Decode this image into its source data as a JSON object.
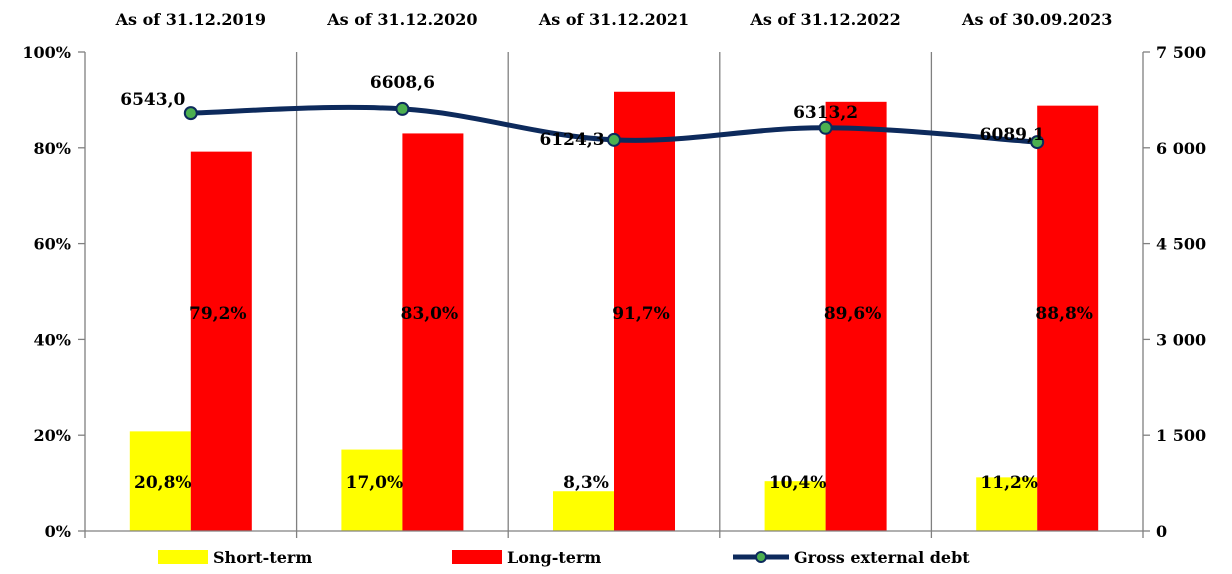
{
  "chart_data": {
    "type": "bar",
    "categories": [
      "As of 31.12.2019",
      "As of 31.12.2020",
      "As of 31.12.2021",
      "As of 31.12.2022",
      "As of 30.09.2023"
    ],
    "series": [
      {
        "name": "Short-term",
        "kind": "bar",
        "axis": "left",
        "color": "#FFFF00",
        "values": [
          20.8,
          17.0,
          8.3,
          10.4,
          11.2
        ],
        "labels": [
          "20,8%",
          "17,0%",
          "8,3%",
          "10,4%",
          "11,2%"
        ]
      },
      {
        "name": "Long-term",
        "kind": "bar",
        "axis": "left",
        "color": "#FF0000",
        "values": [
          79.2,
          83.0,
          91.7,
          89.6,
          88.8
        ],
        "labels": [
          "79,2%",
          "83,0%",
          "91,7%",
          "89,6%",
          "88,8%"
        ]
      },
      {
        "name": "Gross external debt",
        "kind": "line",
        "axis": "right",
        "color": "#0D2A5C",
        "marker_color": "#4CAF50",
        "values": [
          6543.0,
          6608.6,
          6124.3,
          6313.2,
          6089.1
        ],
        "labels": [
          "6543,0",
          "6608,6",
          "6124,3",
          "6313,2",
          "6089,1"
        ]
      }
    ],
    "y_left": {
      "ylim": [
        0,
        100
      ],
      "ticks": [
        0,
        20,
        40,
        60,
        80,
        100
      ],
      "tick_labels": [
        "0%",
        "20%",
        "40%",
        "60%",
        "80%",
        "100%"
      ]
    },
    "y_right": {
      "ylim": [
        0,
        7500
      ],
      "ticks": [
        0,
        1500,
        3000,
        4500,
        6000,
        7500
      ],
      "tick_labels": [
        "0",
        "1 500",
        "3 000",
        "4 500",
        "6 000",
        "7 500"
      ]
    },
    "category_labels_position": "top",
    "legend": {
      "position": "bottom",
      "entries": [
        "Short-term",
        "Long-term",
        "Gross external debt"
      ]
    },
    "grid": false,
    "category_separators": true
  }
}
